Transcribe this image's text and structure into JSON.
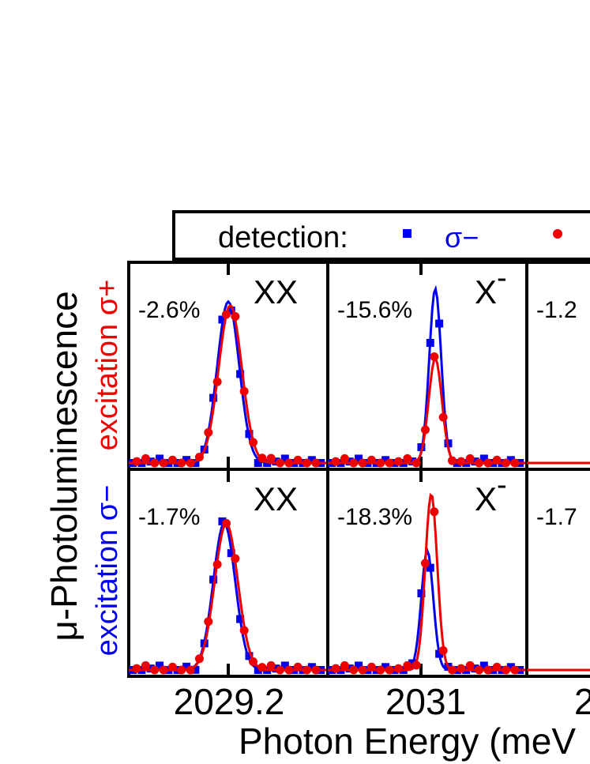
{
  "legend": {
    "label": "detection:",
    "entries": [
      {
        "symbol": "square",
        "color": "#0000ee",
        "text": "σ−"
      },
      {
        "symbol": "circle",
        "color": "#ee0000",
        "text": ""
      }
    ]
  },
  "y_axis": {
    "title": "μ-Photoluminescence",
    "row_labels": [
      {
        "text": "excitation σ+",
        "color": "#ee0000"
      },
      {
        "text": "excitation σ−",
        "color": "#0000ee"
      }
    ]
  },
  "x_axis": {
    "title": "Photon Energy (meV"
  },
  "colors": {
    "sigma_minus": "#0000ee",
    "sigma_plus": "#ee0000",
    "frame": "#000000"
  },
  "chart_data": {
    "type": "scatter",
    "note_fits": "Gaussian fit lines drawn for each detection polarization",
    "x_ticks": [
      {
        "panel_col": 0,
        "label": "2029.2"
      },
      {
        "panel_col": 1,
        "label": "2031"
      },
      {
        "panel_col": 2,
        "label": "2"
      }
    ],
    "panels": [
      {
        "row": 0,
        "col": 0,
        "peak": "XX",
        "sup": "",
        "percent": "-2.6%",
        "fit_blue": {
          "center": 0.5,
          "width": 0.055,
          "amp": 0.88
        },
        "fit_red": {
          "center": 0.51,
          "width": 0.058,
          "amp": 0.86
        }
      },
      {
        "row": 0,
        "col": 1,
        "peak": "X",
        "sup": "-",
        "percent": "-15.6%",
        "fit_blue": {
          "center": 0.54,
          "width": 0.03,
          "amp": 0.95
        },
        "fit_red": {
          "center": 0.54,
          "width": 0.033,
          "amp": 0.57
        }
      },
      {
        "row": 0,
        "col": 2,
        "peak": "",
        "sup": "",
        "percent": "-1.2",
        "fit_blue": null,
        "fit_red": null
      },
      {
        "row": 1,
        "col": 0,
        "peak": "XX",
        "sup": "",
        "percent": "-1.7%",
        "fit_blue": {
          "center": 0.48,
          "width": 0.055,
          "amp": 0.8
        },
        "fit_red": {
          "center": 0.49,
          "width": 0.058,
          "amp": 0.8
        }
      },
      {
        "row": 1,
        "col": 1,
        "peak": "X",
        "sup": "-",
        "percent": "-18.3%",
        "fit_blue": {
          "center": 0.5,
          "width": 0.03,
          "amp": 0.65
        },
        "fit_red": {
          "center": 0.52,
          "width": 0.03,
          "amp": 0.96
        }
      },
      {
        "row": 1,
        "col": 2,
        "peak": "",
        "sup": "",
        "percent": "-1.7",
        "fit_blue": null,
        "fit_red": null
      }
    ]
  }
}
